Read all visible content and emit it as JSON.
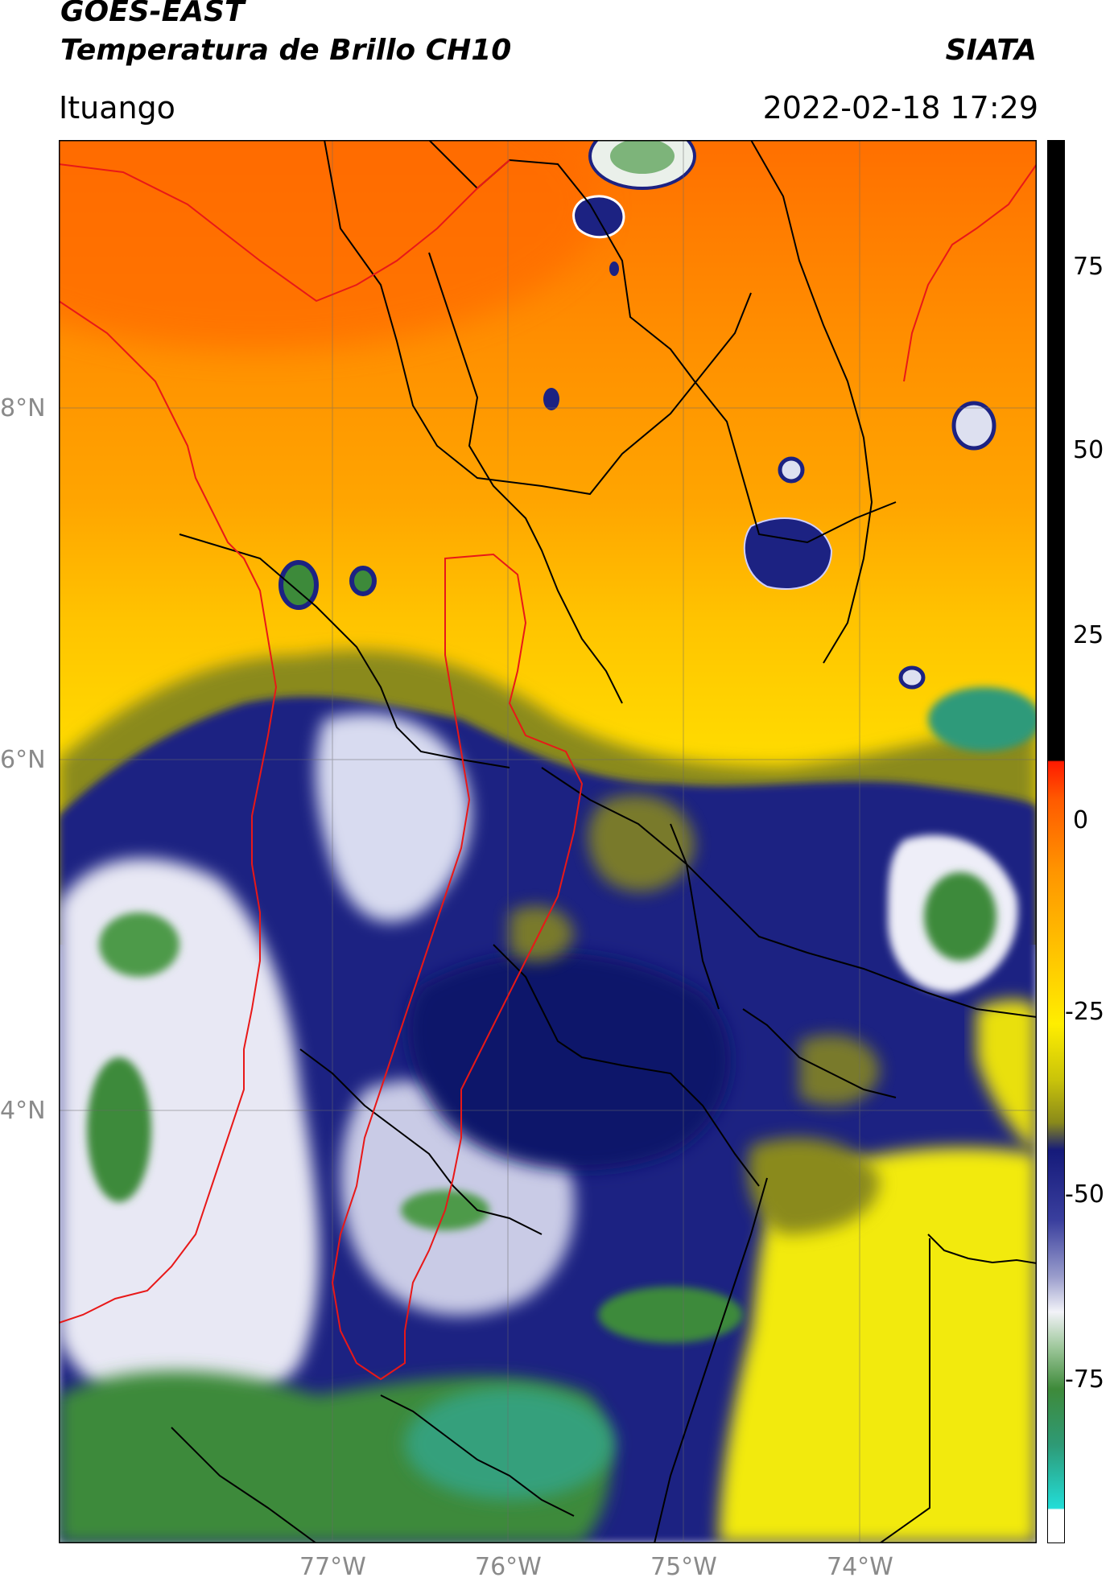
{
  "header": {
    "title_line1": "GOES-EAST",
    "title_line2": "Temperatura de Brillo CH10",
    "org": "SIATA",
    "location": "Ituango",
    "datetime": "2022-02-18 17:29"
  },
  "map": {
    "lat_labels": [
      "8°N",
      "6°N",
      "4°N"
    ],
    "lon_labels": [
      "77°W",
      "76°W",
      "75°W",
      "74°W"
    ]
  },
  "colorbar": {
    "ticks": [
      "75",
      "50",
      "25",
      "0",
      "-25",
      "-50",
      "-75"
    ],
    "colors": {
      "black": "#000000",
      "red": "#ff1a00",
      "orange": "#ff8c00",
      "yellow": "#ffee00",
      "olive": "#8a8a1a",
      "navy": "#151a7a",
      "white": "#f2f2f8",
      "green": "#3e8a3a",
      "cyan": "#22ddd8"
    }
  }
}
